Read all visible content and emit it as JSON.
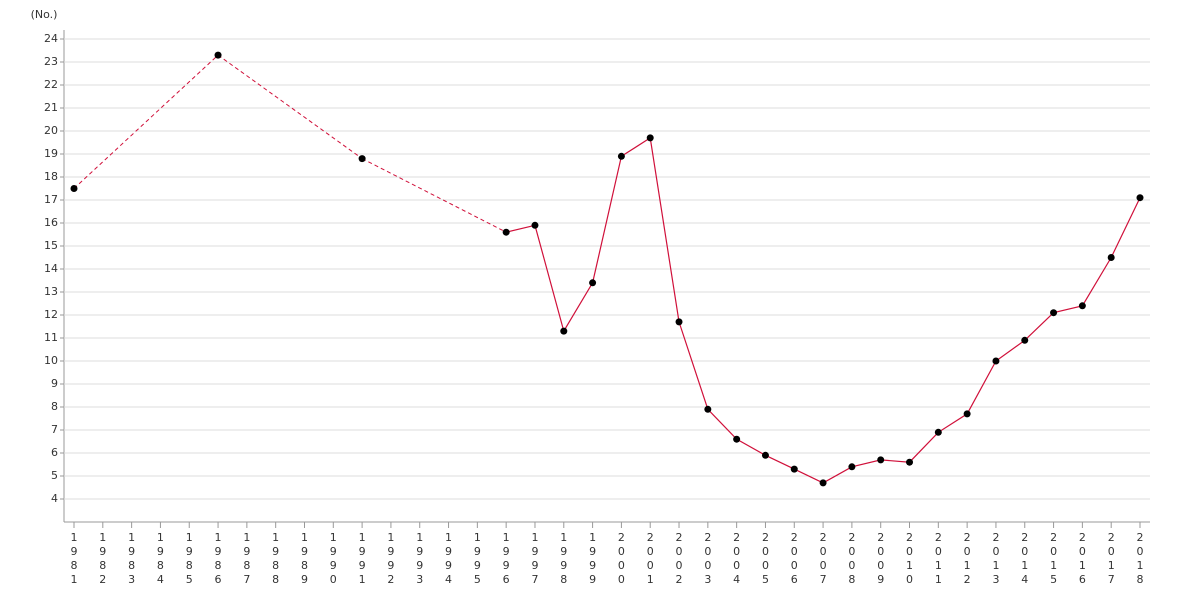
{
  "chart_data": {
    "type": "line",
    "y_axis_label": "(No.)",
    "categories": [
      "1981",
      "1982",
      "1983",
      "1984",
      "1985",
      "1986",
      "1987",
      "1988",
      "1989",
      "1990",
      "1991",
      "1992",
      "1993",
      "1994",
      "1995",
      "1996",
      "1997",
      "1998",
      "1999",
      "2000",
      "2001",
      "2002",
      "2003",
      "2004",
      "2005",
      "2006",
      "2007",
      "2008",
      "2009",
      "2010",
      "2011",
      "2012",
      "2013",
      "2014",
      "2015",
      "2016",
      "2017",
      "2018"
    ],
    "series": [
      {
        "color": "#d0103a",
        "marker_color": "#000000",
        "values": [
          17.5,
          null,
          null,
          null,
          null,
          23.3,
          null,
          null,
          null,
          null,
          18.8,
          null,
          null,
          null,
          null,
          15.6,
          15.9,
          11.3,
          13.4,
          18.9,
          19.7,
          11.7,
          7.9,
          6.6,
          5.9,
          5.3,
          4.7,
          5.4,
          5.7,
          5.6,
          6.9,
          7.7,
          10.0,
          10.9,
          12.1,
          12.4,
          14.5,
          17.1
        ]
      }
    ],
    "ylim": [
      3,
      25
    ],
    "yticks": [
      4,
      5,
      6,
      7,
      8,
      9,
      10,
      11,
      12,
      13,
      14,
      15,
      16,
      17,
      18,
      19,
      20,
      21,
      22,
      23,
      24
    ],
    "grid": true,
    "gaps_dashed": true
  }
}
